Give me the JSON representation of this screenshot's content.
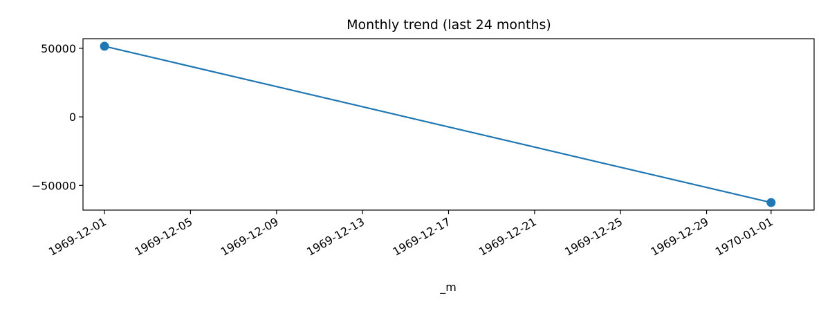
{
  "chart_data": {
    "type": "line",
    "title": "Monthly trend (last 24 months)",
    "xlabel": "_m",
    "ylabel": "",
    "x_type": "date",
    "xlim": [
      "1969-11-30",
      "1970-01-03"
    ],
    "ylim": [
      -68000,
      57000
    ],
    "x_ticks": [
      "1969-12-01",
      "1969-12-05",
      "1969-12-09",
      "1969-12-13",
      "1969-12-17",
      "1969-12-21",
      "1969-12-25",
      "1969-12-29",
      "1970-01-01"
    ],
    "y_ticks": [
      50000,
      0,
      -50000
    ],
    "y_tick_labels": [
      "50000",
      "0",
      "−50000"
    ],
    "grid": false,
    "series": [
      {
        "color": "#1f77b4",
        "marker": "circle",
        "x": [
          "1969-12-01",
          "1970-01-01"
        ],
        "y": [
          51500,
          -62500
        ]
      }
    ]
  }
}
